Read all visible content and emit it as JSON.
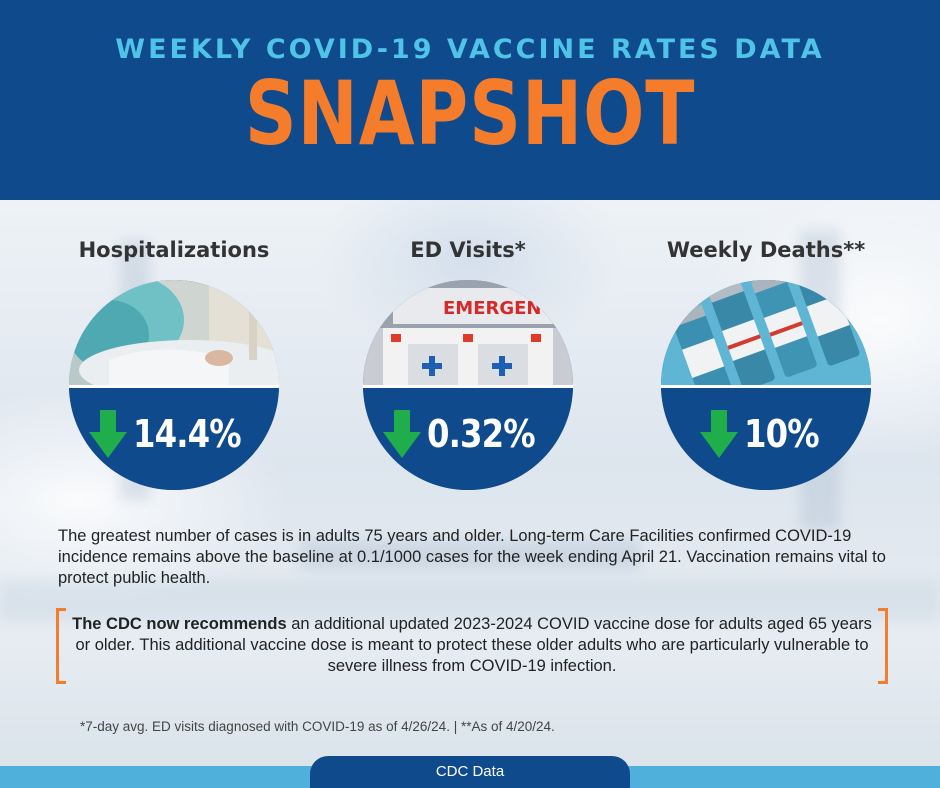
{
  "header": {
    "subtitle": "WEEKLY COVID-19 VACCINE RATES DATA",
    "title": "SNAPSHOT"
  },
  "stats": [
    {
      "label": "Hospitalizations",
      "value": "14.4%",
      "trend": "down",
      "image": "hospital-patient-photo"
    },
    {
      "label": "ED Visits*",
      "value": "0.32%",
      "trend": "down",
      "image": "ambulance-emergency-photo",
      "image_text": "EMERGENC"
    },
    {
      "label": "Weekly Deaths**",
      "value": "10%",
      "trend": "down",
      "image": "vaccine-vials-photo"
    }
  ],
  "paragraph": "The greatest number of cases is in adults 75 years and older. Long-term Care Facilities confirmed COVID-19 incidence remains above the baseline at 0.1/1000 cases for the week ending April 21. Vaccination remains vital to protect public health.",
  "callout": {
    "bold_lead": "The CDC now recommends",
    "text": " an additional updated 2023-2024 COVID vaccine dose for adults aged 65 years or older. This additional vaccine dose is meant to protect these older adults who are particularly vulnerable to severe illness from COVID-19 infection."
  },
  "footnote": "*7-day avg. ED visits diagnosed with COVID-19 as of 4/26/24.  |  **As of 4/20/24.",
  "footer_tab": "CDC Data",
  "colors": {
    "navy": "#0e4a8c",
    "cyan": "#4fc3e8",
    "orange": "#f47c2a",
    "arrow_green": "#1fae4b",
    "band_blue": "#4fb0dc"
  }
}
